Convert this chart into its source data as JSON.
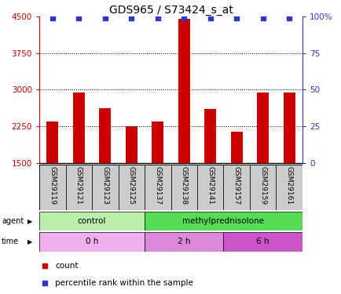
{
  "title": "GDS965 / S73424_s_at",
  "samples": [
    "GSM29119",
    "GSM29121",
    "GSM29123",
    "GSM29125",
    "GSM29137",
    "GSM29138",
    "GSM29141",
    "GSM29157",
    "GSM29159",
    "GSM29161"
  ],
  "counts": [
    2350,
    2950,
    2620,
    2250,
    2350,
    4450,
    2600,
    2150,
    2940,
    2940
  ],
  "percentile_ranks": [
    99,
    99,
    99,
    99,
    99,
    99,
    99,
    99,
    99,
    99
  ],
  "bar_color": "#cc0000",
  "dot_color": "#3333cc",
  "ylim_left": [
    1500,
    4500
  ],
  "ylim_right": [
    0,
    100
  ],
  "yticks_left": [
    1500,
    2250,
    3000,
    3750,
    4500
  ],
  "yticks_right": [
    0,
    25,
    50,
    75,
    100
  ],
  "ytick_labels_right": [
    "0",
    "25",
    "50",
    "75",
    "100%"
  ],
  "grid_values": [
    2250,
    3000,
    3750
  ],
  "agent_groups": [
    {
      "label": "control",
      "start": 0,
      "end": 4,
      "color": "#bbeeaa"
    },
    {
      "label": "methylprednisolone",
      "start": 4,
      "end": 10,
      "color": "#55dd55"
    }
  ],
  "time_groups": [
    {
      "label": "0 h",
      "start": 0,
      "end": 4,
      "color": "#f0b0f0"
    },
    {
      "label": "2 h",
      "start": 4,
      "end": 7,
      "color": "#dd88dd"
    },
    {
      "label": "6 h",
      "start": 7,
      "end": 10,
      "color": "#cc55cc"
    }
  ],
  "legend_items": [
    {
      "label": "count",
      "color": "#cc0000"
    },
    {
      "label": "percentile rank within the sample",
      "color": "#3333cc"
    }
  ],
  "axis_color_left": "#cc0000",
  "axis_color_right": "#3333cc",
  "label_bg_color": "#cccccc",
  "spine_color": "black"
}
